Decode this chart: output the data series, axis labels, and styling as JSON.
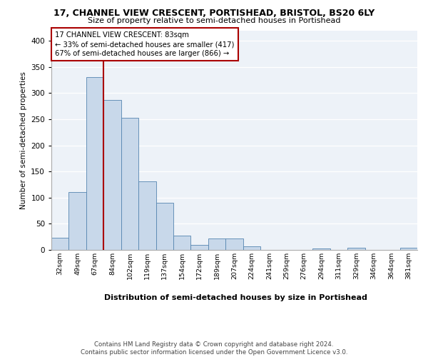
{
  "title1": "17, CHANNEL VIEW CRESCENT, PORTISHEAD, BRISTOL, BS20 6LY",
  "title2": "Size of property relative to semi-detached houses in Portishead",
  "xlabel": "Distribution of semi-detached houses by size in Portishead",
  "ylabel": "Number of semi-detached properties",
  "footer": "Contains HM Land Registry data © Crown copyright and database right 2024.\nContains public sector information licensed under the Open Government Licence v3.0.",
  "annotation_title": "17 CHANNEL VIEW CRESCENT: 83sqm",
  "annotation_line1": "← 33% of semi-detached houses are smaller (417)",
  "annotation_line2": "67% of semi-detached houses are larger (866) →",
  "bar_color": "#c8d8ea",
  "bar_edge_color": "#5585b0",
  "property_line_color": "#aa0000",
  "annotation_box_edge": "#aa0000",
  "background_color": "#edf2f8",
  "categories": [
    "32sqm",
    "49sqm",
    "67sqm",
    "84sqm",
    "102sqm",
    "119sqm",
    "137sqm",
    "154sqm",
    "172sqm",
    "189sqm",
    "207sqm",
    "224sqm",
    "241sqm",
    "259sqm",
    "276sqm",
    "294sqm",
    "311sqm",
    "329sqm",
    "346sqm",
    "364sqm",
    "381sqm"
  ],
  "values": [
    23,
    110,
    330,
    287,
    252,
    131,
    90,
    27,
    10,
    22,
    22,
    7,
    0,
    0,
    0,
    3,
    0,
    4,
    0,
    0,
    4
  ],
  "property_line_x": 2.5,
  "ylim": [
    0,
    420
  ],
  "yticks": [
    0,
    50,
    100,
    150,
    200,
    250,
    300,
    350,
    400
  ]
}
